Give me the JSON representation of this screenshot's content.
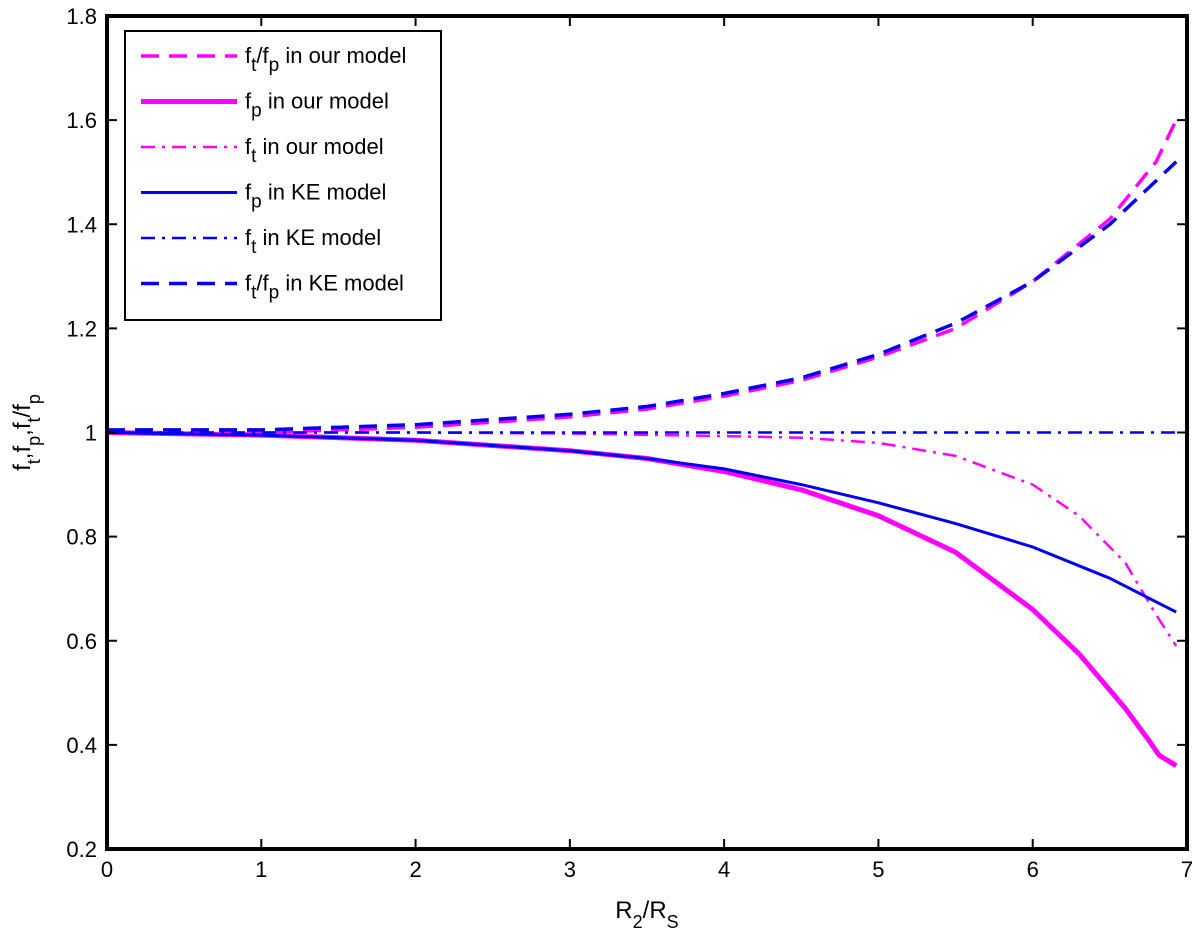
{
  "chart_data": {
    "type": "line",
    "title": "",
    "xlabel": "R2/RS",
    "ylabel": "ft,fp,ft/fp",
    "xlim": [
      0,
      7
    ],
    "ylim": [
      0.2,
      1.8
    ],
    "x_ticks": [
      "0",
      "1",
      "2",
      "3",
      "4",
      "5",
      "6",
      "7"
    ],
    "y_ticks": [
      "0.2",
      "0.4",
      "0.6",
      "0.8",
      "1",
      "1.2",
      "1.4",
      "1.6",
      "1.8"
    ],
    "grid": false,
    "legend_position": "top-left",
    "series": [
      {
        "name": "ft/fp in our model",
        "legend": {
          "main": "f",
          "sub1": "t",
          "mid": "/f",
          "sub2": "p",
          "tail": " in our model"
        },
        "color": "#ff00ff",
        "style": "dashed",
        "x": [
          0,
          1,
          2,
          3,
          3.5,
          4,
          4.5,
          5,
          5.5,
          6,
          6.5,
          6.8,
          6.93
        ],
        "y": [
          1.0,
          1.0,
          1.01,
          1.03,
          1.045,
          1.07,
          1.1,
          1.145,
          1.2,
          1.29,
          1.41,
          1.52,
          1.6
        ]
      },
      {
        "name": "fp in our model",
        "legend": {
          "main": "f",
          "sub1": "p",
          "mid": "",
          "sub2": "",
          "tail": " in our model"
        },
        "color": "#ff00ff",
        "style": "solid-thick",
        "x": [
          0,
          1,
          2,
          3,
          3.5,
          4,
          4.5,
          5,
          5.5,
          6,
          6.3,
          6.6,
          6.75,
          6.82,
          6.93
        ],
        "y": [
          1.0,
          0.995,
          0.985,
          0.965,
          0.95,
          0.925,
          0.89,
          0.84,
          0.77,
          0.66,
          0.575,
          0.47,
          0.41,
          0.38,
          0.36
        ]
      },
      {
        "name": "ft in our model",
        "legend": {
          "main": "f",
          "sub1": "t",
          "mid": "",
          "sub2": "",
          "tail": " in our model"
        },
        "color": "#ff00ff",
        "style": "dashdot",
        "x": [
          0,
          2,
          3,
          4,
          4.5,
          5,
          5.5,
          6,
          6.3,
          6.6,
          6.8,
          6.93
        ],
        "y": [
          1.0,
          1.0,
          0.998,
          0.993,
          0.99,
          0.98,
          0.955,
          0.9,
          0.84,
          0.75,
          0.65,
          0.59
        ]
      },
      {
        "name": "fp in KE model",
        "legend": {
          "main": "f",
          "sub1": "p",
          "mid": "",
          "sub2": "",
          "tail": " in KE model"
        },
        "color": "#0000ee",
        "style": "solid",
        "x": [
          0,
          1,
          2,
          3,
          3.5,
          4,
          4.5,
          5,
          5.5,
          6,
          6.5,
          6.93
        ],
        "y": [
          1.0,
          0.995,
          0.985,
          0.965,
          0.95,
          0.93,
          0.9,
          0.865,
          0.825,
          0.78,
          0.72,
          0.655
        ]
      },
      {
        "name": "ft in KE model",
        "legend": {
          "main": "f",
          "sub1": "t",
          "mid": "",
          "sub2": "",
          "tail": " in KE model"
        },
        "color": "#0000ee",
        "style": "dashdot",
        "x": [
          0,
          6.93
        ],
        "y": [
          1.0,
          1.0
        ]
      },
      {
        "name": "ft/fp in KE model",
        "legend": {
          "main": "f",
          "sub1": "t",
          "mid": "/f",
          "sub2": "p",
          "tail": " in KE model"
        },
        "color": "#0000ee",
        "style": "dashed",
        "x": [
          0,
          1,
          2,
          3,
          3.5,
          4,
          4.5,
          5,
          5.5,
          6,
          6.5,
          6.93
        ],
        "y": [
          1.005,
          1.005,
          1.015,
          1.035,
          1.05,
          1.075,
          1.105,
          1.15,
          1.21,
          1.29,
          1.4,
          1.52
        ]
      }
    ]
  }
}
